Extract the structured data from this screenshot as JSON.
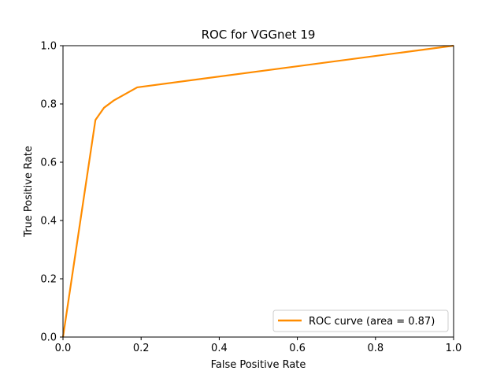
{
  "chart_data": {
    "type": "line",
    "title": "ROC for VGGnet 19",
    "xlabel": "False Positive Rate",
    "ylabel": "True Positive Rate",
    "xlim": [
      0.0,
      1.0
    ],
    "ylim": [
      0.0,
      1.0
    ],
    "x_ticks": [
      "0.0",
      "0.2",
      "0.4",
      "0.6",
      "0.8",
      "1.0"
    ],
    "y_ticks": [
      "0.0",
      "0.2",
      "0.4",
      "0.6",
      "0.8",
      "1.0"
    ],
    "grid": false,
    "legend_position": "lower-right",
    "series": [
      {
        "name": "ROC curve (area = 0.87)",
        "color": "#ff8c00",
        "x": [
          0.0,
          0.083,
          0.105,
          0.13,
          0.19,
          1.0
        ],
        "y": [
          0.0,
          0.745,
          0.787,
          0.812,
          0.857,
          1.0
        ]
      }
    ]
  }
}
